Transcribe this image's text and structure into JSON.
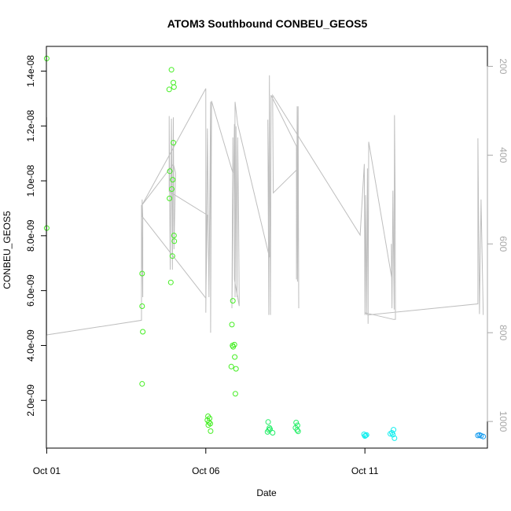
{
  "chart_data": {
    "type": "scatter",
    "title": "ATOM3 Southbound CONBEU_GEOS5",
    "xlabel": "Date",
    "ylabel": "CONBEU_GEOS5",
    "x_tick_labels": [
      "Oct 01",
      "Oct 06",
      "Oct 11"
    ],
    "x_tick_days": [
      1,
      6,
      11
    ],
    "xlim_days": [
      0.99,
      14.85
    ],
    "ylim": [
      2.6e-10,
      1.49e-08
    ],
    "y_ticks": [
      2e-09,
      4e-09,
      6e-09,
      8e-09,
      1e-08,
      1.2e-08,
      1.4e-08
    ],
    "y_tick_labels": [
      "2.0e-09",
      "4.0e-09",
      "6.0e-09",
      "8.0e-09",
      "1.0e-08",
      "1.2e-08",
      "1.4e-08"
    ],
    "y2_label": "",
    "y2_lim": [
      1060,
      155
    ],
    "y2_ticks": [
      200,
      400,
      600,
      800,
      1000
    ],
    "y2_tick_labels": [
      "200",
      "400",
      "600",
      "800",
      "1000"
    ],
    "grid": false,
    "colors": {
      "line": "#bebebe",
      "ring_green": "#44ee22",
      "ring_mid": "#22ee66",
      "ring_cyan": "#11eeee",
      "ring_blue": "#1199ee",
      "axis": "#000000",
      "axis_right": "#a8a8a8"
    },
    "points": [
      {
        "x": 1.0,
        "y": 1.446e-08,
        "c": "ring_green"
      },
      {
        "x": 1.0,
        "y": 8.28e-09,
        "c": "ring_green"
      },
      {
        "x": 4.0,
        "y": 6.62e-09,
        "c": "ring_green"
      },
      {
        "x": 4.0,
        "y": 5.43e-09,
        "c": "ring_green"
      },
      {
        "x": 4.02,
        "y": 4.5e-09,
        "c": "ring_green"
      },
      {
        "x": 4.0,
        "y": 2.6e-09,
        "c": "ring_green"
      },
      {
        "x": 4.92,
        "y": 1.405e-08,
        "c": "ring_green"
      },
      {
        "x": 4.98,
        "y": 1.358e-08,
        "c": "ring_green"
      },
      {
        "x": 4.85,
        "y": 1.333e-08,
        "c": "ring_green"
      },
      {
        "x": 5.0,
        "y": 1.342e-08,
        "c": "ring_green"
      },
      {
        "x": 4.98,
        "y": 1.139e-08,
        "c": "ring_green"
      },
      {
        "x": 4.87,
        "y": 1.035e-08,
        "c": "ring_green"
      },
      {
        "x": 4.96,
        "y": 1.004e-08,
        "c": "ring_green"
      },
      {
        "x": 4.93,
        "y": 9.7e-09,
        "c": "ring_green"
      },
      {
        "x": 4.86,
        "y": 9.36e-09,
        "c": "ring_green"
      },
      {
        "x": 5.0,
        "y": 8.01e-09,
        "c": "ring_green"
      },
      {
        "x": 5.01,
        "y": 7.8e-09,
        "c": "ring_green"
      },
      {
        "x": 4.95,
        "y": 7.26e-09,
        "c": "ring_green"
      },
      {
        "x": 4.9,
        "y": 6.3e-09,
        "c": "ring_green"
      },
      {
        "x": 6.07,
        "y": 1.42e-09,
        "c": "ring_green"
      },
      {
        "x": 6.12,
        "y": 1.35e-09,
        "c": "ring_green"
      },
      {
        "x": 6.05,
        "y": 1.28e-09,
        "c": "ring_green"
      },
      {
        "x": 6.1,
        "y": 1.2e-09,
        "c": "ring_green"
      },
      {
        "x": 6.08,
        "y": 1.1e-09,
        "c": "ring_green"
      },
      {
        "x": 6.15,
        "y": 8.8e-10,
        "c": "ring_green"
      },
      {
        "x": 6.14,
        "y": 1.15e-09,
        "c": "ring_green"
      },
      {
        "x": 6.85,
        "y": 5.63e-09,
        "c": "ring_green"
      },
      {
        "x": 6.82,
        "y": 4.76e-09,
        "c": "ring_green"
      },
      {
        "x": 6.9,
        "y": 4.03e-09,
        "c": "ring_green"
      },
      {
        "x": 6.86,
        "y": 3.95e-09,
        "c": "ring_green"
      },
      {
        "x": 6.84,
        "y": 4e-09,
        "c": "ring_green"
      },
      {
        "x": 6.91,
        "y": 3.58e-09,
        "c": "ring_green"
      },
      {
        "x": 6.8,
        "y": 3.23e-09,
        "c": "ring_green"
      },
      {
        "x": 6.95,
        "y": 3.15e-09,
        "c": "ring_green"
      },
      {
        "x": 6.93,
        "y": 2.24e-09,
        "c": "ring_green"
      },
      {
        "x": 7.96,
        "y": 1.21e-09,
        "c": "ring_mid"
      },
      {
        "x": 8.0,
        "y": 1e-09,
        "c": "ring_mid"
      },
      {
        "x": 7.98,
        "y": 9.2e-10,
        "c": "ring_mid"
      },
      {
        "x": 7.94,
        "y": 8.5e-10,
        "c": "ring_mid"
      },
      {
        "x": 8.1,
        "y": 8.2e-10,
        "c": "ring_mid"
      },
      {
        "x": 8.02,
        "y": 9.5e-10,
        "c": "ring_mid"
      },
      {
        "x": 8.84,
        "y": 1.19e-09,
        "c": "ring_mid"
      },
      {
        "x": 8.88,
        "y": 1.09e-09,
        "c": "ring_mid"
      },
      {
        "x": 8.82,
        "y": 1e-09,
        "c": "ring_mid"
      },
      {
        "x": 8.87,
        "y": 9.2e-10,
        "c": "ring_mid"
      },
      {
        "x": 8.9,
        "y": 8.7e-10,
        "c": "ring_mid"
      },
      {
        "x": 10.97,
        "y": 7.6e-10,
        "c": "ring_cyan"
      },
      {
        "x": 11.02,
        "y": 7.2e-10,
        "c": "ring_cyan"
      },
      {
        "x": 11.05,
        "y": 7.4e-10,
        "c": "ring_cyan"
      },
      {
        "x": 11.0,
        "y": 7e-10,
        "c": "ring_cyan"
      },
      {
        "x": 11.8,
        "y": 7.8e-10,
        "c": "ring_cyan"
      },
      {
        "x": 11.85,
        "y": 8.2e-10,
        "c": "ring_cyan"
      },
      {
        "x": 11.9,
        "y": 9.3e-10,
        "c": "ring_cyan"
      },
      {
        "x": 11.88,
        "y": 7.5e-10,
        "c": "ring_cyan"
      },
      {
        "x": 11.93,
        "y": 6.2e-10,
        "c": "ring_cyan"
      },
      {
        "x": 14.55,
        "y": 7.2e-10,
        "c": "ring_blue"
      },
      {
        "x": 14.6,
        "y": 7.4e-10,
        "c": "ring_blue"
      },
      {
        "x": 14.65,
        "y": 7.1e-10,
        "c": "ring_blue"
      },
      {
        "x": 14.72,
        "y": 6.8e-10,
        "c": "ring_blue"
      }
    ],
    "line": [
      [
        1.0,
        800
      ],
      [
        1.0,
        315
      ],
      [
        1.0,
        805
      ],
      [
        3.98,
        772
      ],
      [
        3.98,
        512
      ],
      [
        4.02,
        720
      ],
      [
        4.02,
        540
      ],
      [
        4.0,
        500
      ],
      [
        4.0,
        538
      ],
      [
        6.0,
        722
      ],
      [
        6.05,
        535
      ],
      [
        4.85,
        482
      ],
      [
        4.85,
        312
      ],
      [
        4.88,
        658
      ],
      [
        4.92,
        318
      ],
      [
        4.95,
        658
      ],
      [
        4.98,
        315
      ],
      [
        5.0,
        612
      ],
      [
        5.05,
        440
      ],
      [
        4.98,
        420
      ],
      [
        4.0,
        512
      ],
      [
        6.0,
        250
      ],
      [
        6.0,
        755
      ],
      [
        6.05,
        340
      ],
      [
        6.1,
        720
      ],
      [
        6.15,
        280
      ],
      [
        6.15,
        800
      ],
      [
        6.18,
        278
      ],
      [
        6.85,
        440
      ],
      [
        6.85,
        360
      ],
      [
        6.82,
        745
      ],
      [
        6.9,
        330
      ],
      [
        6.92,
        720
      ],
      [
        6.95,
        335
      ],
      [
        6.98,
        720
      ],
      [
        7.0,
        360
      ],
      [
        7.03,
        540
      ],
      [
        7.05,
        740
      ],
      [
        6.9,
        680
      ],
      [
        6.92,
        280
      ],
      [
        7.0,
        330
      ],
      [
        8.0,
        630
      ],
      [
        7.95,
        320
      ],
      [
        7.98,
        760
      ],
      [
        8.0,
        220
      ],
      [
        8.03,
        760
      ],
      [
        8.05,
        265
      ],
      [
        8.85,
        380
      ],
      [
        8.85,
        680
      ],
      [
        8.87,
        290
      ],
      [
        8.88,
        685
      ],
      [
        8.9,
        290
      ],
      [
        8.92,
        745
      ],
      [
        8.9,
        430
      ],
      [
        8.12,
        485
      ],
      [
        8.1,
        265
      ],
      [
        10.85,
        580
      ],
      [
        10.98,
        420
      ],
      [
        11.0,
        760
      ],
      [
        11.02,
        490
      ],
      [
        11.05,
        760
      ],
      [
        11.08,
        430
      ],
      [
        11.1,
        780
      ],
      [
        11.12,
        370
      ],
      [
        11.85,
        680
      ],
      [
        11.83,
        600
      ],
      [
        11.85,
        745
      ],
      [
        11.88,
        480
      ],
      [
        11.92,
        748
      ],
      [
        11.93,
        310
      ],
      [
        11.95,
        490
      ],
      [
        11.96,
        770
      ],
      [
        11.9,
        770
      ],
      [
        11.0,
        755
      ],
      [
        11.1,
        760
      ],
      [
        14.55,
        735
      ],
      [
        14.55,
        362
      ],
      [
        14.6,
        758
      ],
      [
        14.65,
        500
      ],
      [
        14.72,
        760
      ]
    ]
  }
}
